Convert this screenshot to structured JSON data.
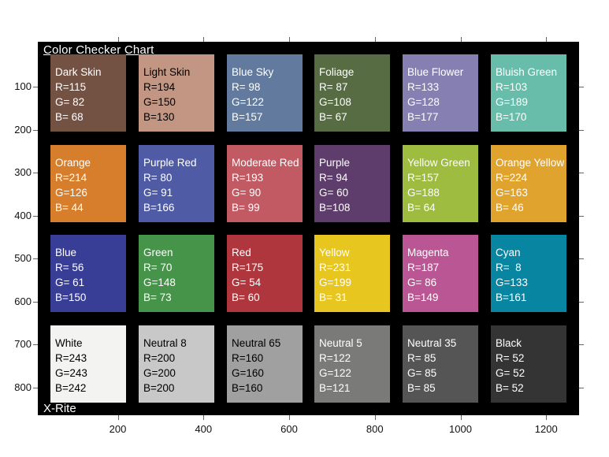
{
  "chart_data": {
    "type": "heatmap",
    "title": "Color Checker Chart",
    "watermark": "X-Rite",
    "background": "#000000",
    "x_ticks": [
      "200",
      "400",
      "600",
      "800",
      "1000",
      "1200"
    ],
    "y_ticks": [
      "100",
      "200",
      "300",
      "400",
      "500",
      "600",
      "700",
      "800"
    ],
    "x_range": [
      0,
      1290
    ],
    "y_range": [
      0,
      870
    ],
    "grid_rows": 4,
    "grid_cols": 6,
    "grid": [
      [
        {
          "name": "Dark Skin",
          "r": 115,
          "g": 82,
          "b": 68,
          "text_color": "#ffffff"
        },
        {
          "name": "Light Skin",
          "r": 194,
          "g": 150,
          "b": 130,
          "text_color": "#000000"
        },
        {
          "name": "Blue Sky",
          "r": 98,
          "g": 122,
          "b": 157,
          "text_color": "#ffffff"
        },
        {
          "name": "Foliage",
          "r": 87,
          "g": 108,
          "b": 67,
          "text_color": "#ffffff"
        },
        {
          "name": "Blue Flower",
          "r": 133,
          "g": 128,
          "b": 177,
          "text_color": "#ffffff"
        },
        {
          "name": "Bluish Green",
          "r": 103,
          "g": 189,
          "b": 170,
          "text_color": "#ffffff"
        }
      ],
      [
        {
          "name": "Orange",
          "r": 214,
          "g": 126,
          "b": 44,
          "text_color": "#ffffff"
        },
        {
          "name": "Purple Red",
          "r": 80,
          "g": 91,
          "b": 166,
          "text_color": "#ffffff"
        },
        {
          "name": "Moderate Red",
          "r": 193,
          "g": 90,
          "b": 99,
          "text_color": "#ffffff"
        },
        {
          "name": "Purple",
          "r": 94,
          "g": 60,
          "b": 108,
          "text_color": "#ffffff"
        },
        {
          "name": "Yellow Green",
          "r": 157,
          "g": 188,
          "b": 64,
          "text_color": "#ffffff"
        },
        {
          "name": "Orange Yellow",
          "r": 224,
          "g": 163,
          "b": 46,
          "text_color": "#ffffff"
        }
      ],
      [
        {
          "name": "Blue",
          "r": 56,
          "g": 61,
          "b": 150,
          "text_color": "#ffffff"
        },
        {
          "name": "Green",
          "r": 70,
          "g": 148,
          "b": 73,
          "text_color": "#ffffff"
        },
        {
          "name": "Red",
          "r": 175,
          "g": 54,
          "b": 60,
          "text_color": "#ffffff"
        },
        {
          "name": "Yellow",
          "r": 231,
          "g": 199,
          "b": 31,
          "text_color": "#ffffff"
        },
        {
          "name": "Magenta",
          "r": 187,
          "g": 86,
          "b": 149,
          "text_color": "#ffffff"
        },
        {
          "name": "Cyan",
          "r": 8,
          "g": 133,
          "b": 161,
          "text_color": "#ffffff"
        }
      ],
      [
        {
          "name": "White",
          "r": 243,
          "g": 243,
          "b": 242,
          "text_color": "#000000"
        },
        {
          "name": "Neutral 8",
          "r": 200,
          "g": 200,
          "b": 200,
          "text_color": "#000000"
        },
        {
          "name": "Neutral 65",
          "r": 160,
          "g": 160,
          "b": 160,
          "text_color": "#000000"
        },
        {
          "name": "Neutral 5",
          "r": 122,
          "g": 122,
          "b": 121,
          "text_color": "#ffffff"
        },
        {
          "name": "Neutral 35",
          "r": 85,
          "g": 85,
          "b": 85,
          "text_color": "#ffffff"
        },
        {
          "name": "Black",
          "r": 52,
          "g": 52,
          "b": 52,
          "text_color": "#ffffff"
        }
      ]
    ]
  }
}
